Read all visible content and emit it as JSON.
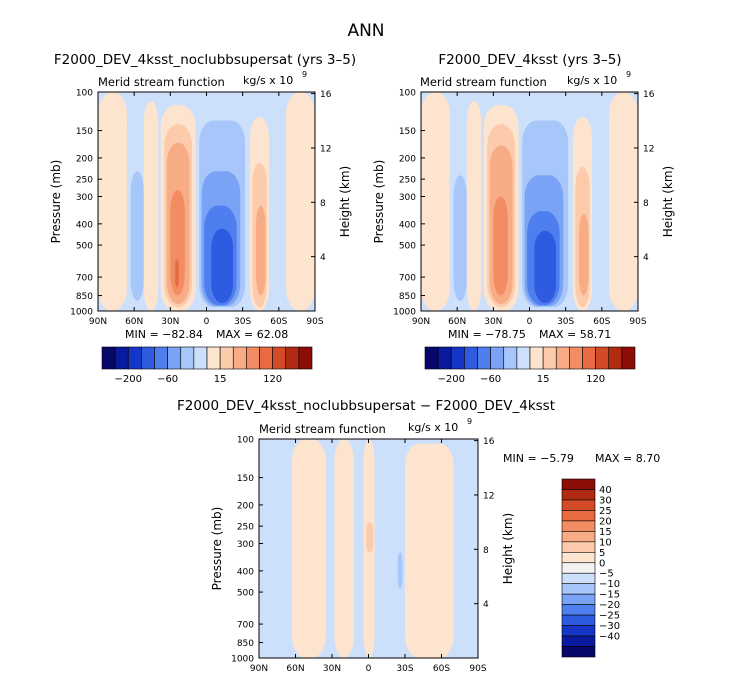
{
  "page": {
    "title": "ANN"
  },
  "colors": {
    "neg": [
      "#08086b",
      "#0a1a9e",
      "#1536c6",
      "#2f5be0",
      "#4f7fee",
      "#7aa3f5",
      "#a7c6fa",
      "#cde0fb"
    ],
    "zero": "#f2f2f2",
    "pos": [
      "#fde4cf",
      "#fccbac",
      "#f8ac86",
      "#f28c62",
      "#e86a40",
      "#d34a26",
      "#b12a12",
      "#8b0d05"
    ]
  },
  "panels": {
    "p1": {
      "title": "F2000_DEV_4ksst_noclubbsupersat (yrs 3–5)",
      "subtitle_left": "Merid stream function",
      "units_text": "kg/s x 10",
      "units_exp": "9",
      "min_label": "MIN = −82.84",
      "max_label": "MAX = 62.08"
    },
    "p2": {
      "title": "F2000_DEV_4ksst (yrs 3–5)",
      "subtitle_left": "Merid stream function",
      "units_text": "kg/s x 10",
      "units_exp": "9",
      "min_label": "MIN = −78.75",
      "max_label": "MAX = 58.71"
    },
    "p3": {
      "title": "F2000_DEV_4ksst_noclubbsupersat − F2000_DEV_4ksst",
      "subtitle_left": "Merid stream function",
      "units_text": "kg/s x 10",
      "units_exp": "9",
      "min_label": "MIN = −5.79",
      "max_label": "MAX = 8.70"
    }
  },
  "axes": {
    "ylabel_left": "Pressure (mb)",
    "ylabel_right": "Height (km)",
    "pressure_ticks": [
      "100",
      "150",
      "200",
      "250",
      "300",
      "400",
      "500",
      "700",
      "850",
      "1000"
    ],
    "height_ticks": [
      "16",
      "12",
      "8",
      "4"
    ],
    "lat_ticks": [
      "90N",
      "60N",
      "30N",
      "0",
      "30S",
      "60S",
      "90S"
    ]
  },
  "colorbars": {
    "horizontal_labels": [
      "−200",
      "−60",
      "15",
      "120"
    ],
    "vertical_labels": [
      "40",
      "30",
      "25",
      "20",
      "15",
      "10",
      "5",
      "0",
      "−5",
      "−10",
      "−15",
      "−20",
      "−25",
      "−30",
      "−40"
    ]
  },
  "chart_data": [
    {
      "type": "heatmap",
      "title": "F2000_DEV_4ksst_noclubbsupersat (yrs 3–5)",
      "subtitle": "Merid stream function",
      "units": "kg/s x 10^9",
      "x_ticks": [
        "90N",
        "60N",
        "30N",
        "0",
        "30S",
        "60S",
        "90S"
      ],
      "y_ticks_pressure_mb": [
        100,
        150,
        200,
        250,
        300,
        400,
        500,
        700,
        850,
        1000
      ],
      "y_ticks_height_km": [
        16,
        12,
        8,
        4
      ],
      "min": -82.84,
      "max": 62.08,
      "cells": [
        {
          "lat0": 90,
          "lat1": 66,
          "p_top": 100,
          "p_bot": 1000,
          "level": 1
        },
        {
          "lat0": 66,
          "lat1": 60,
          "p_top": 130,
          "p_bot": 1000,
          "level": -1
        },
        {
          "lat0": 63,
          "lat1": 52,
          "p_top": 230,
          "p_bot": 900,
          "level": -2
        },
        {
          "lat0": 52,
          "lat1": 40,
          "p_top": 110,
          "p_bot": 1000,
          "level": 1
        },
        {
          "lat0": 38,
          "lat1": 9,
          "p_top": 115,
          "p_bot": 1000,
          "level": 1
        },
        {
          "lat0": 35,
          "lat1": 12,
          "p_top": 140,
          "p_bot": 960,
          "level": 2
        },
        {
          "lat0": 33,
          "lat1": 14,
          "p_top": 170,
          "p_bot": 930,
          "level": 3
        },
        {
          "lat0": 30,
          "lat1": 18,
          "p_top": 280,
          "p_bot": 850,
          "level": 4
        },
        {
          "lat0": 26,
          "lat1": 23,
          "p_top": 580,
          "p_bot": 780,
          "level": 5
        },
        {
          "lat0": 8,
          "lat1": -36,
          "p_top": 100,
          "p_bot": 1000,
          "level": -1
        },
        {
          "lat0": 6,
          "lat1": -32,
          "p_top": 135,
          "p_bot": 960,
          "level": -2
        },
        {
          "lat0": 4,
          "lat1": -28,
          "p_top": 230,
          "p_bot": 950,
          "level": -3
        },
        {
          "lat0": 2,
          "lat1": -25,
          "p_top": 330,
          "p_bot": 940,
          "level": -4
        },
        {
          "lat0": -4,
          "lat1": -22,
          "p_top": 420,
          "p_bot": 920,
          "level": -5
        },
        {
          "lat0": -36,
          "lat1": -52,
          "p_top": 130,
          "p_bot": 1000,
          "level": 1
        },
        {
          "lat0": -38,
          "lat1": -50,
          "p_top": 210,
          "p_bot": 960,
          "level": 2
        },
        {
          "lat0": -41,
          "lat1": -49,
          "p_top": 330,
          "p_bot": 850,
          "level": 3
        },
        {
          "lat0": -52,
          "lat1": -66,
          "p_top": 100,
          "p_bot": 1000,
          "level": -1
        },
        {
          "lat0": -66,
          "lat1": -90,
          "p_top": 100,
          "p_bot": 1000,
          "level": 1
        }
      ]
    },
    {
      "type": "heatmap",
      "title": "F2000_DEV_4ksst (yrs 3–5)",
      "subtitle": "Merid stream function",
      "units": "kg/s x 10^9",
      "x_ticks": [
        "90N",
        "60N",
        "30N",
        "0",
        "30S",
        "60S",
        "90S"
      ],
      "y_ticks_pressure_mb": [
        100,
        150,
        200,
        250,
        300,
        400,
        500,
        700,
        850,
        1000
      ],
      "y_ticks_height_km": [
        16,
        12,
        8,
        4
      ],
      "min": -78.75,
      "max": 58.71,
      "cells": [
        {
          "lat0": 90,
          "lat1": 66,
          "p_top": 100,
          "p_bot": 1000,
          "level": 1
        },
        {
          "lat0": 66,
          "lat1": 60,
          "p_top": 130,
          "p_bot": 1000,
          "level": -1
        },
        {
          "lat0": 63,
          "lat1": 52,
          "p_top": 240,
          "p_bot": 900,
          "level": -2
        },
        {
          "lat0": 52,
          "lat1": 40,
          "p_top": 110,
          "p_bot": 1000,
          "level": 1
        },
        {
          "lat0": 38,
          "lat1": 9,
          "p_top": 115,
          "p_bot": 1000,
          "level": 1
        },
        {
          "lat0": 35,
          "lat1": 12,
          "p_top": 140,
          "p_bot": 960,
          "level": 2
        },
        {
          "lat0": 33,
          "lat1": 14,
          "p_top": 175,
          "p_bot": 930,
          "level": 3
        },
        {
          "lat0": 30,
          "lat1": 18,
          "p_top": 300,
          "p_bot": 850,
          "level": 4
        },
        {
          "lat0": 8,
          "lat1": -36,
          "p_top": 100,
          "p_bot": 1000,
          "level": -1
        },
        {
          "lat0": 6,
          "lat1": -32,
          "p_top": 135,
          "p_bot": 960,
          "level": -2
        },
        {
          "lat0": 4,
          "lat1": -28,
          "p_top": 240,
          "p_bot": 950,
          "level": -3
        },
        {
          "lat0": 2,
          "lat1": -25,
          "p_top": 350,
          "p_bot": 940,
          "level": -4
        },
        {
          "lat0": -4,
          "lat1": -22,
          "p_top": 430,
          "p_bot": 920,
          "level": -5
        },
        {
          "lat0": -36,
          "lat1": -52,
          "p_top": 130,
          "p_bot": 1000,
          "level": 1
        },
        {
          "lat0": -38,
          "lat1": -50,
          "p_top": 220,
          "p_bot": 960,
          "level": 2
        },
        {
          "lat0": -41,
          "lat1": -49,
          "p_top": 360,
          "p_bot": 850,
          "level": 3
        },
        {
          "lat0": -52,
          "lat1": -66,
          "p_top": 100,
          "p_bot": 1000,
          "level": -1
        },
        {
          "lat0": -66,
          "lat1": -90,
          "p_top": 100,
          "p_bot": 1000,
          "level": 1
        }
      ]
    },
    {
      "type": "heatmap",
      "title": "F2000_DEV_4ksst_noclubbsupersat − F2000_DEV_4ksst",
      "subtitle": "Merid stream function",
      "units": "kg/s x 10^9",
      "x_ticks": [
        "90N",
        "60N",
        "30N",
        "0",
        "30S",
        "60S",
        "90S"
      ],
      "y_ticks_pressure_mb": [
        100,
        150,
        200,
        250,
        300,
        400,
        500,
        700,
        850,
        1000
      ],
      "y_ticks_height_km": [
        16,
        12,
        8,
        4
      ],
      "min": -5.79,
      "max": 8.7,
      "contour_levels": [
        40,
        30,
        25,
        20,
        15,
        10,
        5,
        0,
        -5,
        -10,
        -15,
        -20,
        -25,
        -30,
        -40
      ],
      "cells": [
        {
          "lat0": 90,
          "lat1": 63,
          "p_top": 100,
          "p_bot": 1000,
          "level": -1
        },
        {
          "lat0": 63,
          "lat1": 35,
          "p_top": 100,
          "p_bot": 1000,
          "level": 1
        },
        {
          "lat0": 35,
          "lat1": 28,
          "p_top": 110,
          "p_bot": 1000,
          "level": -1
        },
        {
          "lat0": 28,
          "lat1": 12,
          "p_top": 100,
          "p_bot": 1000,
          "level": 1
        },
        {
          "lat0": 12,
          "lat1": 4,
          "p_top": 150,
          "p_bot": 1000,
          "level": -1
        },
        {
          "lat0": 4,
          "lat1": -5,
          "p_top": 100,
          "p_bot": 1000,
          "level": 1
        },
        {
          "lat0": 2,
          "lat1": -4,
          "p_top": 240,
          "p_bot": 330,
          "level": 2
        },
        {
          "lat0": -5,
          "lat1": -30,
          "p_top": 100,
          "p_bot": 1000,
          "level": -1
        },
        {
          "lat0": -24,
          "lat1": -28,
          "p_top": 330,
          "p_bot": 480,
          "level": -2
        },
        {
          "lat0": -30,
          "lat1": -70,
          "p_top": 105,
          "p_bot": 1000,
          "level": 1
        },
        {
          "lat0": -70,
          "lat1": -90,
          "p_top": 100,
          "p_bot": 1000,
          "level": -1
        }
      ]
    }
  ]
}
